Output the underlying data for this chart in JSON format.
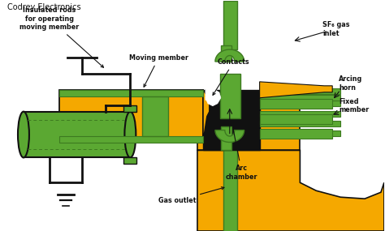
{
  "title": "Codrey Electronics",
  "background_color": "#ffffff",
  "orange": "#F5A800",
  "green": "#5BA832",
  "dark_green": "#3d7a20",
  "black": "#111111",
  "white": "#ffffff",
  "labels": {
    "insulated_rods": "Insulated rods\nfor operating\nmoving member",
    "moving_member": "Moving member",
    "contacts": "Contacts",
    "arc_chamber": "Arc\nchamber",
    "gas_outlet": "Gas outlet",
    "sf6_gas": "SF₆ gas\ninlet",
    "arcing_horn": "Arcing\nhorn",
    "fixed_member": "Fixed\nmember"
  },
  "figsize": [
    4.74,
    2.85
  ],
  "dpi": 100
}
